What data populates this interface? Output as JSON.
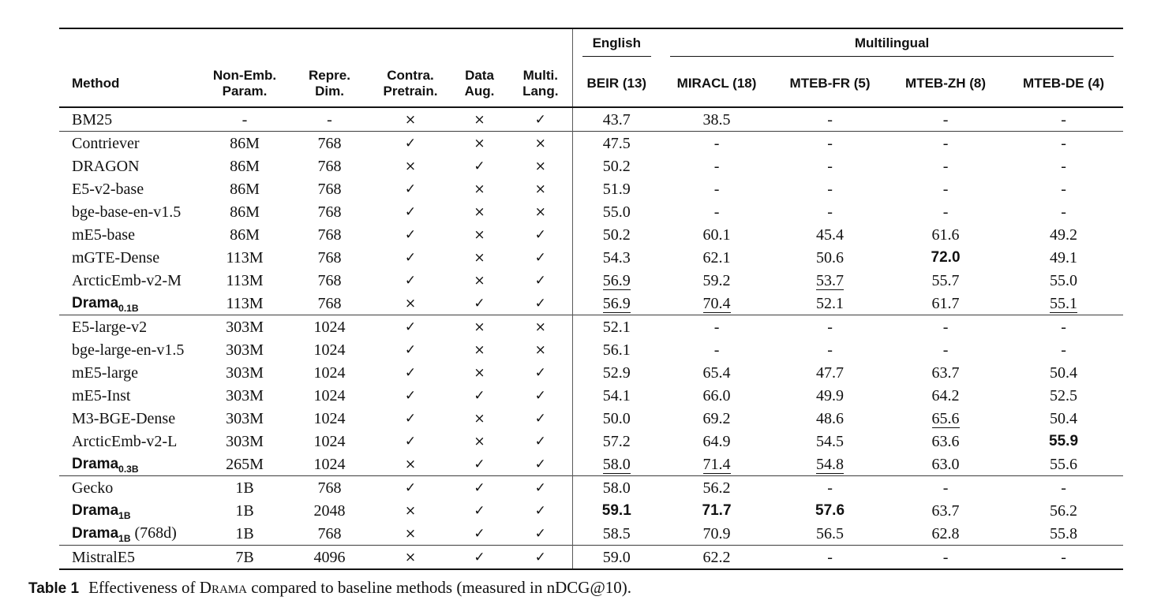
{
  "table": {
    "left_columns": [
      {
        "l1": "Method",
        "l2": ""
      },
      {
        "l1": "Non-Emb.",
        "l2": "Param."
      },
      {
        "l1": "Repre.",
        "l2": "Dim."
      },
      {
        "l1": "Contra.",
        "l2": "Pretrain."
      },
      {
        "l1": "Data",
        "l2": "Aug."
      },
      {
        "l1": "Multi.",
        "l2": "Lang."
      }
    ],
    "group_headers": [
      {
        "label": "English"
      },
      {
        "label": "Multilingual"
      }
    ],
    "benchmarks": [
      "BEIR (13)",
      "MIRACL (18)",
      "MTEB-FR (5)",
      "MTEB-ZH (8)",
      "MTEB-DE (4)"
    ],
    "icons": {
      "check": "✓",
      "cross": "×"
    },
    "groups": [
      {
        "rows": [
          {
            "method": {
              "text": "BM25",
              "bold": false,
              "sub": "",
              "suffix": ""
            },
            "param": "-",
            "dim": "-",
            "flags": [
              "cross",
              "cross",
              "check"
            ],
            "scores": [
              {
                "v": "43.7"
              },
              {
                "v": "38.5"
              },
              {
                "v": "-"
              },
              {
                "v": "-"
              },
              {
                "v": "-"
              }
            ]
          }
        ]
      },
      {
        "rows": [
          {
            "method": {
              "text": "Contriever",
              "bold": false,
              "sub": "",
              "suffix": ""
            },
            "param": "86M",
            "dim": "768",
            "flags": [
              "check",
              "cross",
              "cross"
            ],
            "scores": [
              {
                "v": "47.5"
              },
              {
                "v": "-"
              },
              {
                "v": "-"
              },
              {
                "v": "-"
              },
              {
                "v": "-"
              }
            ]
          },
          {
            "method": {
              "text": "DRAGON",
              "bold": false,
              "sub": "",
              "suffix": ""
            },
            "param": "86M",
            "dim": "768",
            "flags": [
              "cross",
              "check",
              "cross"
            ],
            "scores": [
              {
                "v": "50.2"
              },
              {
                "v": "-"
              },
              {
                "v": "-"
              },
              {
                "v": "-"
              },
              {
                "v": "-"
              }
            ]
          },
          {
            "method": {
              "text": "E5-v2-base",
              "bold": false,
              "sub": "",
              "suffix": ""
            },
            "param": "86M",
            "dim": "768",
            "flags": [
              "check",
              "cross",
              "cross"
            ],
            "scores": [
              {
                "v": "51.9"
              },
              {
                "v": "-"
              },
              {
                "v": "-"
              },
              {
                "v": "-"
              },
              {
                "v": "-"
              }
            ]
          },
          {
            "method": {
              "text": "bge-base-en-v1.5",
              "bold": false,
              "sub": "",
              "suffix": ""
            },
            "param": "86M",
            "dim": "768",
            "flags": [
              "check",
              "cross",
              "cross"
            ],
            "scores": [
              {
                "v": "55.0"
              },
              {
                "v": "-"
              },
              {
                "v": "-"
              },
              {
                "v": "-"
              },
              {
                "v": "-"
              }
            ]
          },
          {
            "method": {
              "text": "mE5-base",
              "bold": false,
              "sub": "",
              "suffix": ""
            },
            "param": "86M",
            "dim": "768",
            "flags": [
              "check",
              "cross",
              "check"
            ],
            "scores": [
              {
                "v": "50.2"
              },
              {
                "v": "60.1"
              },
              {
                "v": "45.4"
              },
              {
                "v": "61.6"
              },
              {
                "v": "49.2"
              }
            ]
          },
          {
            "method": {
              "text": "mGTE-Dense",
              "bold": false,
              "sub": "",
              "suffix": ""
            },
            "param": "113M",
            "dim": "768",
            "flags": [
              "check",
              "cross",
              "check"
            ],
            "scores": [
              {
                "v": "54.3"
              },
              {
                "v": "62.1"
              },
              {
                "v": "50.6"
              },
              {
                "v": "72.0",
                "s": "b"
              },
              {
                "v": "49.1"
              }
            ]
          },
          {
            "method": {
              "text": "ArcticEmb-v2-M",
              "bold": false,
              "sub": "",
              "suffix": ""
            },
            "param": "113M",
            "dim": "768",
            "flags": [
              "check",
              "cross",
              "check"
            ],
            "scores": [
              {
                "v": "56.9",
                "s": "u"
              },
              {
                "v": "59.2"
              },
              {
                "v": "53.7",
                "s": "u"
              },
              {
                "v": "55.7"
              },
              {
                "v": "55.0"
              }
            ]
          },
          {
            "method": {
              "text": "Drama",
              "bold": true,
              "sub": "0.1B",
              "suffix": ""
            },
            "param": "113M",
            "dim": "768",
            "flags": [
              "cross",
              "check",
              "check"
            ],
            "scores": [
              {
                "v": "56.9",
                "s": "u"
              },
              {
                "v": "70.4",
                "s": "u"
              },
              {
                "v": "52.1"
              },
              {
                "v": "61.7"
              },
              {
                "v": "55.1",
                "s": "u"
              }
            ]
          }
        ]
      },
      {
        "rows": [
          {
            "method": {
              "text": "E5-large-v2",
              "bold": false,
              "sub": "",
              "suffix": ""
            },
            "param": "303M",
            "dim": "1024",
            "flags": [
              "check",
              "cross",
              "cross"
            ],
            "scores": [
              {
                "v": "52.1"
              },
              {
                "v": "-"
              },
              {
                "v": "-"
              },
              {
                "v": "-"
              },
              {
                "v": "-"
              }
            ]
          },
          {
            "method": {
              "text": "bge-large-en-v1.5",
              "bold": false,
              "sub": "",
              "suffix": ""
            },
            "param": "303M",
            "dim": "1024",
            "flags": [
              "check",
              "cross",
              "cross"
            ],
            "scores": [
              {
                "v": "56.1"
              },
              {
                "v": "-"
              },
              {
                "v": "-"
              },
              {
                "v": "-"
              },
              {
                "v": "-"
              }
            ]
          },
          {
            "method": {
              "text": "mE5-large",
              "bold": false,
              "sub": "",
              "suffix": ""
            },
            "param": "303M",
            "dim": "1024",
            "flags": [
              "check",
              "cross",
              "check"
            ],
            "scores": [
              {
                "v": "52.9"
              },
              {
                "v": "65.4"
              },
              {
                "v": "47.7"
              },
              {
                "v": "63.7"
              },
              {
                "v": "50.4"
              }
            ]
          },
          {
            "method": {
              "text": "mE5-Inst",
              "bold": false,
              "sub": "",
              "suffix": ""
            },
            "param": "303M",
            "dim": "1024",
            "flags": [
              "check",
              "check",
              "check"
            ],
            "scores": [
              {
                "v": "54.1"
              },
              {
                "v": "66.0"
              },
              {
                "v": "49.9"
              },
              {
                "v": "64.2"
              },
              {
                "v": "52.5"
              }
            ]
          },
          {
            "method": {
              "text": "M3-BGE-Dense",
              "bold": false,
              "sub": "",
              "suffix": ""
            },
            "param": "303M",
            "dim": "1024",
            "flags": [
              "check",
              "cross",
              "check"
            ],
            "scores": [
              {
                "v": "50.0"
              },
              {
                "v": "69.2"
              },
              {
                "v": "48.6"
              },
              {
                "v": "65.6",
                "s": "u"
              },
              {
                "v": "50.4"
              }
            ]
          },
          {
            "method": {
              "text": "ArcticEmb-v2-L",
              "bold": false,
              "sub": "",
              "suffix": ""
            },
            "param": "303M",
            "dim": "1024",
            "flags": [
              "check",
              "cross",
              "check"
            ],
            "scores": [
              {
                "v": "57.2"
              },
              {
                "v": "64.9"
              },
              {
                "v": "54.5"
              },
              {
                "v": "63.6"
              },
              {
                "v": "55.9",
                "s": "b"
              }
            ]
          },
          {
            "method": {
              "text": "Drama",
              "bold": true,
              "sub": "0.3B",
              "suffix": ""
            },
            "param": "265M",
            "dim": "1024",
            "flags": [
              "cross",
              "check",
              "check"
            ],
            "scores": [
              {
                "v": "58.0",
                "s": "u"
              },
              {
                "v": "71.4",
                "s": "u"
              },
              {
                "v": "54.8",
                "s": "u"
              },
              {
                "v": "63.0"
              },
              {
                "v": "55.6"
              }
            ]
          }
        ]
      },
      {
        "rows": [
          {
            "method": {
              "text": "Gecko",
              "bold": false,
              "sub": "",
              "suffix": ""
            },
            "param": "1B",
            "dim": "768",
            "flags": [
              "check",
              "check",
              "check"
            ],
            "scores": [
              {
                "v": "58.0"
              },
              {
                "v": "56.2"
              },
              {
                "v": "-"
              },
              {
                "v": "-"
              },
              {
                "v": "-"
              }
            ]
          },
          {
            "method": {
              "text": "Drama",
              "bold": true,
              "sub": "1B",
              "suffix": ""
            },
            "param": "1B",
            "dim": "2048",
            "flags": [
              "cross",
              "check",
              "check"
            ],
            "scores": [
              {
                "v": "59.1",
                "s": "b"
              },
              {
                "v": "71.7",
                "s": "b"
              },
              {
                "v": "57.6",
                "s": "b"
              },
              {
                "v": "63.7"
              },
              {
                "v": "56.2"
              }
            ]
          },
          {
            "method": {
              "text": "Drama",
              "bold": true,
              "sub": "1B",
              "suffix": " (768d)"
            },
            "param": "1B",
            "dim": "768",
            "flags": [
              "cross",
              "check",
              "check"
            ],
            "scores": [
              {
                "v": "58.5"
              },
              {
                "v": "70.9"
              },
              {
                "v": "56.5"
              },
              {
                "v": "62.8"
              },
              {
                "v": "55.8"
              }
            ]
          }
        ]
      },
      {
        "rows": [
          {
            "method": {
              "text": "MistralE5",
              "bold": false,
              "sub": "",
              "suffix": ""
            },
            "param": "7B",
            "dim": "4096",
            "flags": [
              "cross",
              "check",
              "check"
            ],
            "scores": [
              {
                "v": "59.0"
              },
              {
                "v": "62.2"
              },
              {
                "v": "-"
              },
              {
                "v": "-"
              },
              {
                "v": "-"
              }
            ]
          }
        ]
      }
    ]
  },
  "caption": {
    "label": "Table 1",
    "text_before": "Effectiveness of ",
    "drama": "Drama",
    "text_after": " compared to baseline methods (measured in nDCG@10)."
  }
}
